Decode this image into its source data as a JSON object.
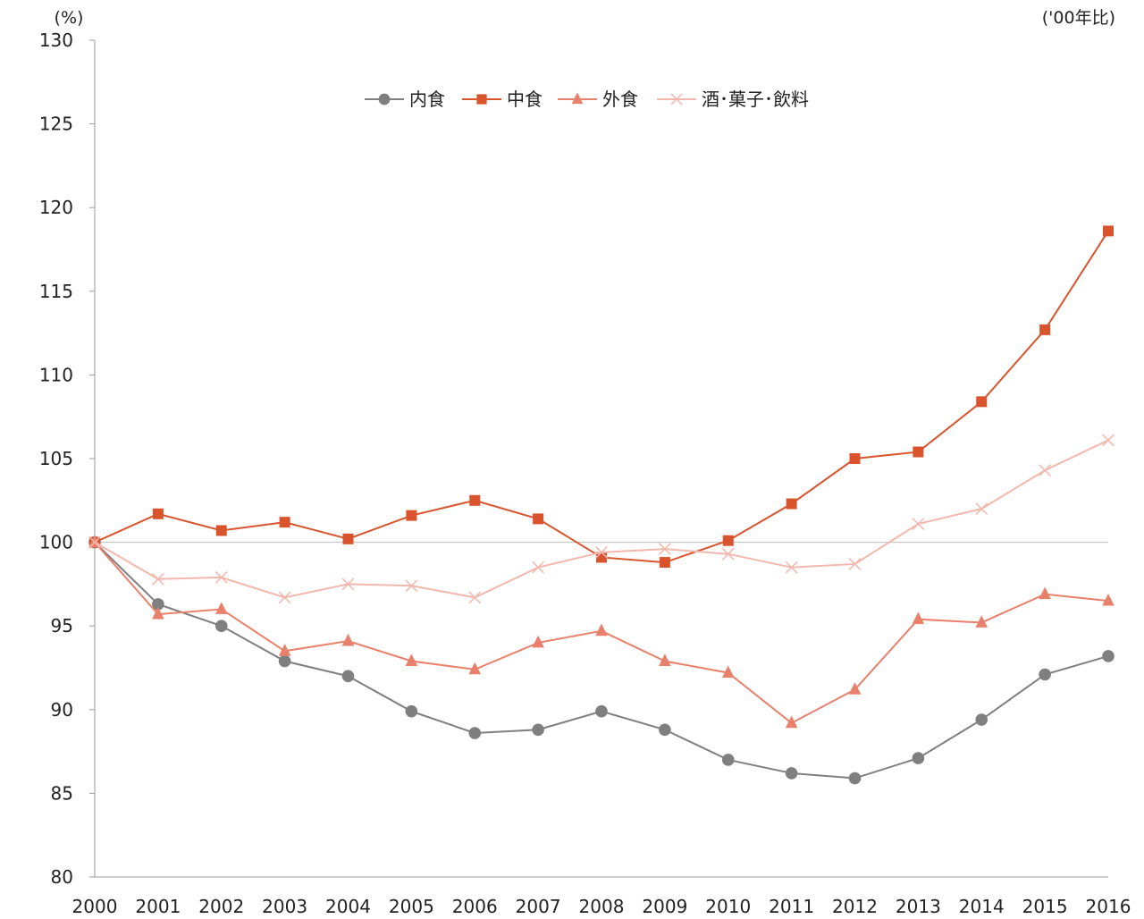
{
  "chart_data": {
    "type": "line",
    "y_unit_label": "(%)",
    "basis_label": "('00年比)",
    "categories": [
      "2000",
      "2001",
      "2002",
      "2003",
      "2004",
      "2005",
      "2006",
      "2007",
      "2008",
      "2009",
      "2010",
      "2011",
      "2012",
      "2013",
      "2014",
      "2015",
      "2016"
    ],
    "ylim": [
      80,
      130
    ],
    "y_ticks": [
      80,
      85,
      90,
      95,
      100,
      105,
      110,
      115,
      120,
      125,
      130
    ],
    "reference_line": 100,
    "grid": false,
    "legend_position": "top-center",
    "series": [
      {
        "name": "内食",
        "marker": "circle",
        "color": "#7f7f7f",
        "values": [
          100,
          96.3,
          95.0,
          92.9,
          92.0,
          89.9,
          88.6,
          88.8,
          89.9,
          88.8,
          87.0,
          86.2,
          85.9,
          87.1,
          89.4,
          92.1,
          93.2
        ]
      },
      {
        "name": "中食",
        "marker": "square",
        "color": "#d9532c",
        "values": [
          100,
          101.7,
          100.7,
          101.2,
          100.2,
          101.6,
          102.5,
          101.4,
          99.1,
          98.8,
          100.1,
          102.3,
          105.0,
          105.4,
          108.4,
          112.7,
          118.6
        ]
      },
      {
        "name": "外食",
        "marker": "triangle",
        "color": "#e8806c",
        "values": [
          100,
          95.7,
          96.0,
          93.5,
          94.1,
          92.9,
          92.4,
          94.0,
          94.7,
          92.9,
          92.2,
          89.2,
          91.2,
          95.4,
          95.2,
          96.9,
          96.5
        ]
      },
      {
        "name": "酒･菓子･飲料",
        "marker": "x",
        "color": "#f2b7ad",
        "values": [
          100,
          97.8,
          97.9,
          96.7,
          97.5,
          97.4,
          96.7,
          98.5,
          99.4,
          99.6,
          99.3,
          98.5,
          98.7,
          101.1,
          102.0,
          104.3,
          106.1
        ]
      }
    ]
  }
}
